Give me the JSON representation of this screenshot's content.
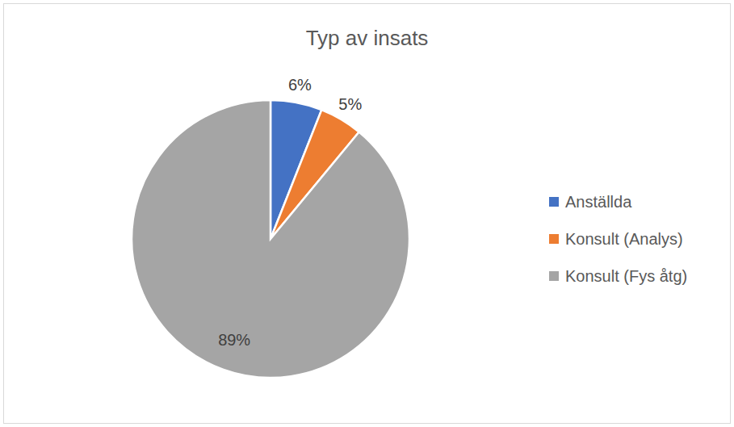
{
  "chart_data": {
    "type": "pie",
    "title": "Typ av insats",
    "categories": [
      "Anställda",
      "Konsult (Analys)",
      "Konsult (Fys åtg)"
    ],
    "values": [
      6,
      5,
      89
    ],
    "value_labels": [
      "6%",
      "5%",
      "89%"
    ],
    "colors": [
      "#4472c4",
      "#ed7d31",
      "#a5a5a5"
    ],
    "data_labels": true,
    "legend": "right"
  }
}
